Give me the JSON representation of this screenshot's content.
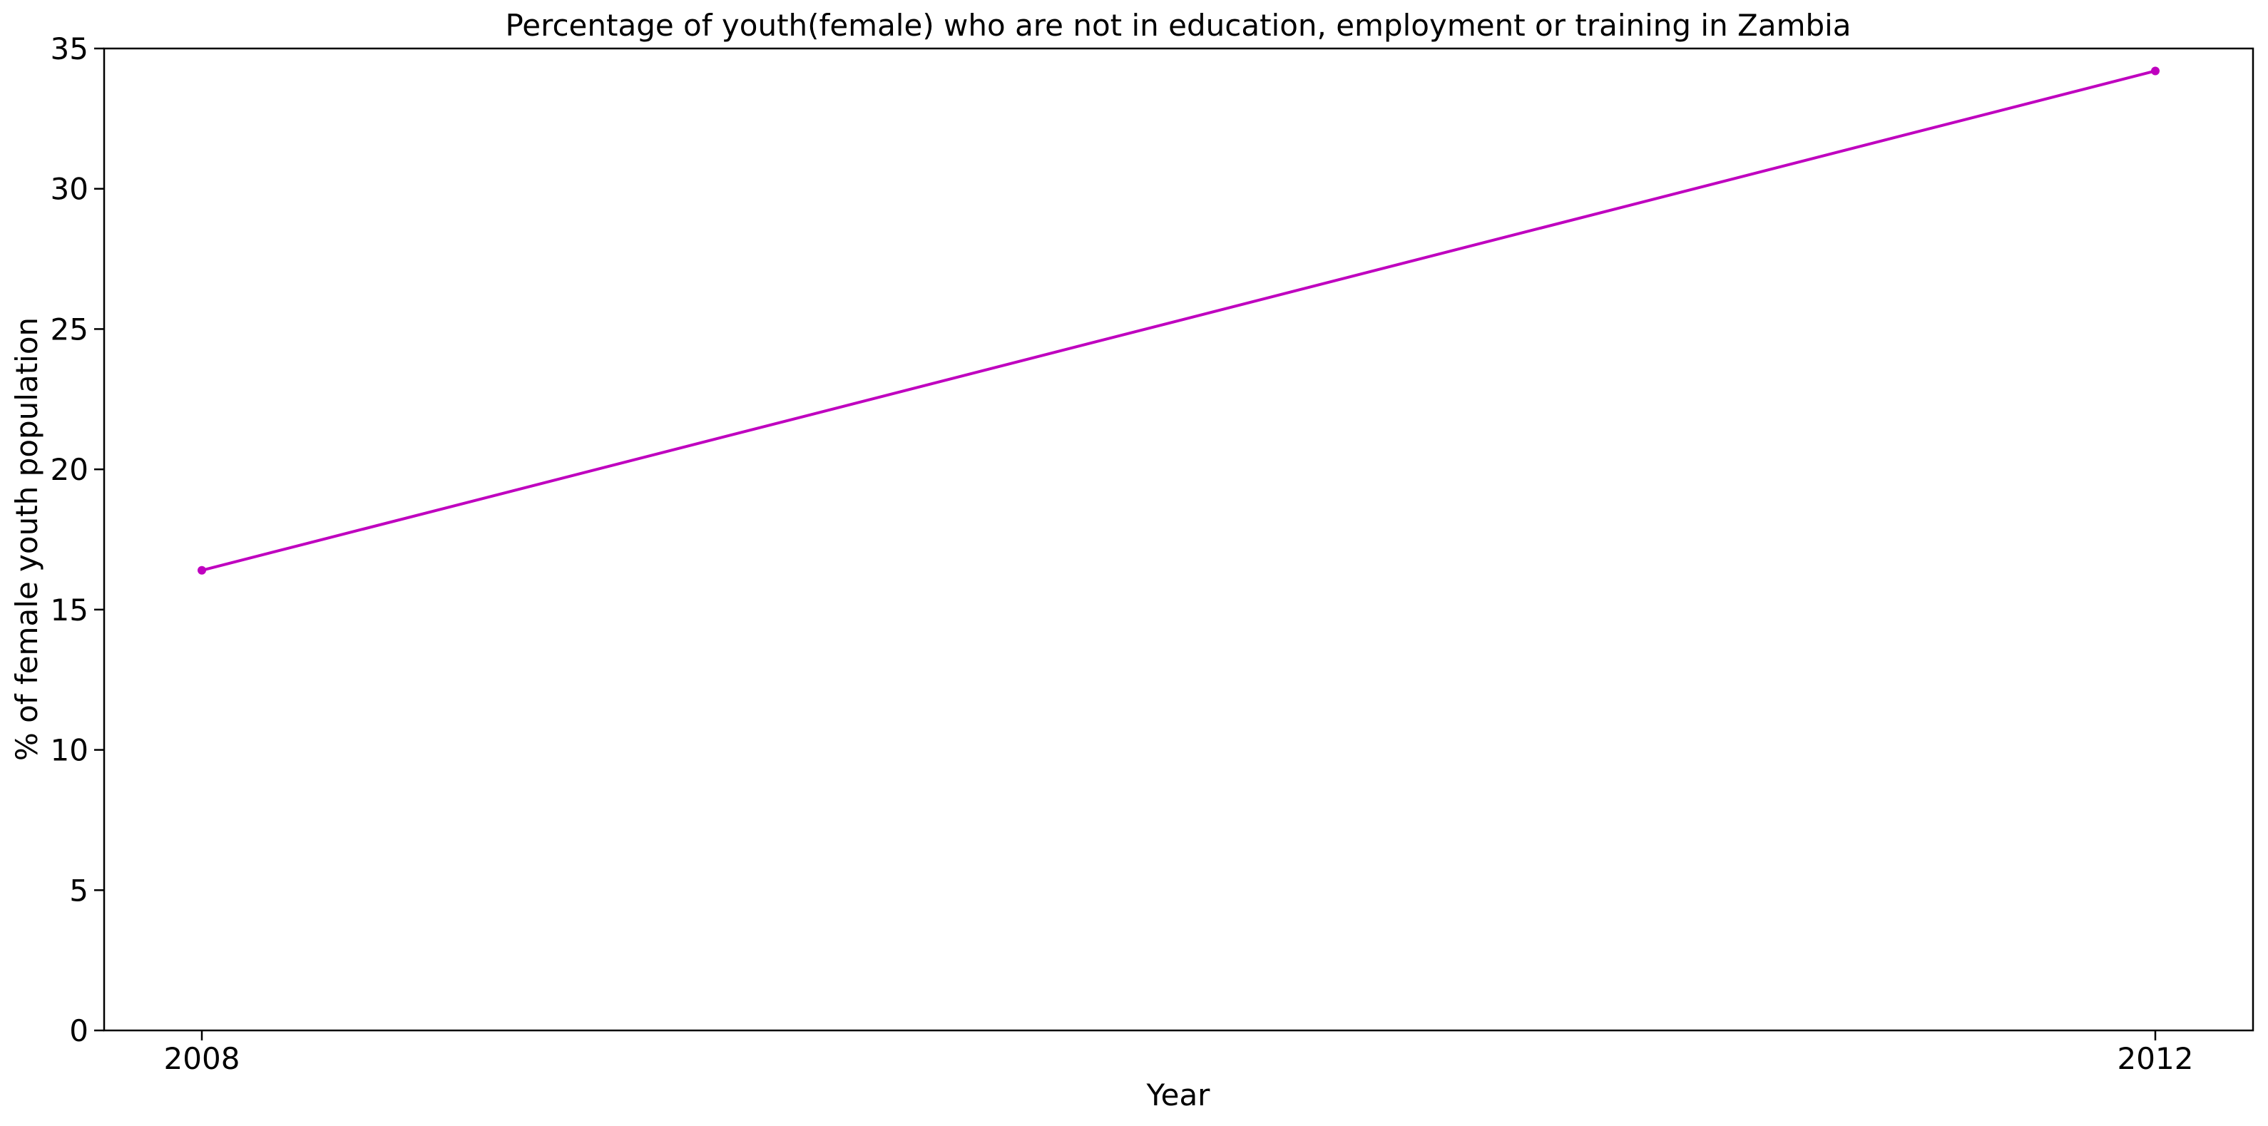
{
  "chart_data": {
    "type": "line",
    "title": "Percentage of youth(female) who are not in education, employment or training in Zambia",
    "xlabel": "Year",
    "ylabel": "% of female youth population",
    "x": [
      "2008",
      "2012"
    ],
    "series": [
      {
        "values": [
          16.4,
          34.2
        ],
        "color": "#bf00bf",
        "marker": "dot"
      }
    ],
    "ylim": [
      0,
      35
    ],
    "yticks": [
      "0",
      "5",
      "10",
      "15",
      "20",
      "25",
      "30",
      "35"
    ],
    "xticks": [
      "2008",
      "2012"
    ],
    "grid": false,
    "legend": "none"
  }
}
